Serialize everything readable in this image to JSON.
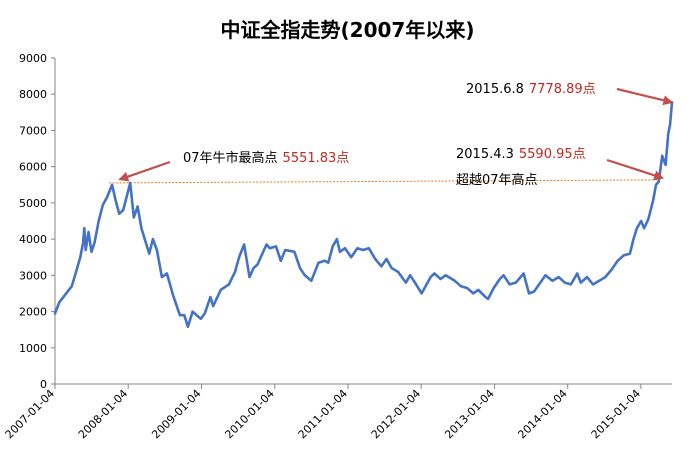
{
  "chart_data": {
    "type": "line",
    "title": "中证全指走势(2007年以来)",
    "xlabel": "",
    "ylabel": "",
    "ylim": [
      0,
      9000
    ],
    "yticks": [
      "0",
      "1000",
      "2000",
      "3000",
      "4000",
      "5000",
      "6000",
      "7000",
      "8000",
      "9000"
    ],
    "xticks": [
      "2007-01-04",
      "2008-01-04",
      "2009-01-04",
      "2010-01-04",
      "2011-01-04",
      "2012-01-04",
      "2013-01-04",
      "2014-01-04",
      "2015-01-04"
    ],
    "xlim": [
      "2007-01-04",
      "2015-06-08"
    ],
    "grid": false,
    "legend": "none",
    "series": [
      {
        "color": "#4472c4",
        "points": [
          [
            "2007-01-04",
            1950
          ],
          [
            "2007-01-25",
            2250
          ],
          [
            "2007-02-15",
            2400
          ],
          [
            "2007-03-08",
            2550
          ],
          [
            "2007-03-29",
            2700
          ],
          [
            "2007-04-19",
            3100
          ],
          [
            "2007-05-10",
            3500
          ],
          [
            "2007-05-24",
            3900
          ],
          [
            "2007-05-30",
            4300
          ],
          [
            "2007-06-06",
            3700
          ],
          [
            "2007-06-20",
            4200
          ],
          [
            "2007-07-05",
            3650
          ],
          [
            "2007-07-20",
            3900
          ],
          [
            "2007-08-10",
            4500
          ],
          [
            "2007-08-31",
            4950
          ],
          [
            "2007-09-20",
            5150
          ],
          [
            "2007-10-16",
            5500
          ],
          [
            "2007-11-01",
            5100
          ],
          [
            "2007-11-20",
            4700
          ],
          [
            "2007-12-10",
            4800
          ],
          [
            "2008-01-14",
            5550
          ],
          [
            "2008-02-01",
            4600
          ],
          [
            "2008-02-20",
            4900
          ],
          [
            "2008-03-10",
            4300
          ],
          [
            "2008-04-18",
            3600
          ],
          [
            "2008-05-06",
            4000
          ],
          [
            "2008-05-26",
            3700
          ],
          [
            "2008-06-20",
            2950
          ],
          [
            "2008-07-15",
            3050
          ],
          [
            "2008-08-15",
            2450
          ],
          [
            "2008-09-18",
            1900
          ],
          [
            "2008-10-10",
            1900
          ],
          [
            "2008-10-28",
            1580
          ],
          [
            "2008-11-20",
            2000
          ],
          [
            "2008-12-10",
            1900
          ],
          [
            "2008-12-31",
            1800
          ],
          [
            "2009-01-20",
            1950
          ],
          [
            "2009-02-17",
            2400
          ],
          [
            "2009-03-03",
            2150
          ],
          [
            "2009-04-10",
            2600
          ],
          [
            "2009-05-20",
            2750
          ],
          [
            "2009-06-20",
            3100
          ],
          [
            "2009-07-10",
            3500
          ],
          [
            "2009-08-04",
            3850
          ],
          [
            "2009-08-31",
            2950
          ],
          [
            "2009-09-20",
            3200
          ],
          [
            "2009-10-10",
            3300
          ],
          [
            "2009-11-24",
            3850
          ],
          [
            "2009-12-10",
            3750
          ],
          [
            "2010-01-10",
            3800
          ],
          [
            "2010-02-03",
            3400
          ],
          [
            "2010-02-25",
            3700
          ],
          [
            "2010-04-12",
            3650
          ],
          [
            "2010-05-10",
            3200
          ],
          [
            "2010-06-03",
            3000
          ],
          [
            "2010-07-05",
            2850
          ],
          [
            "2010-08-10",
            3350
          ],
          [
            "2010-09-10",
            3400
          ],
          [
            "2010-09-28",
            3350
          ],
          [
            "2010-10-20",
            3800
          ],
          [
            "2010-11-10",
            4000
          ],
          [
            "2010-11-25",
            3650
          ],
          [
            "2010-12-20",
            3750
          ],
          [
            "2011-01-20",
            3500
          ],
          [
            "2011-02-20",
            3750
          ],
          [
            "2011-03-20",
            3700
          ],
          [
            "2011-04-18",
            3750
          ],
          [
            "2011-05-20",
            3450
          ],
          [
            "2011-06-20",
            3250
          ],
          [
            "2011-07-15",
            3450
          ],
          [
            "2011-08-10",
            3200
          ],
          [
            "2011-09-10",
            3100
          ],
          [
            "2011-10-20",
            2800
          ],
          [
            "2011-11-10",
            3000
          ],
          [
            "2011-12-10",
            2750
          ],
          [
            "2012-01-06",
            2500
          ],
          [
            "2012-02-20",
            2950
          ],
          [
            "2012-03-10",
            3050
          ],
          [
            "2012-04-10",
            2900
          ],
          [
            "2012-05-05",
            3000
          ],
          [
            "2012-06-20",
            2850
          ],
          [
            "2012-07-20",
            2700
          ],
          [
            "2012-08-20",
            2650
          ],
          [
            "2012-09-20",
            2500
          ],
          [
            "2012-10-15",
            2600
          ],
          [
            "2012-11-20",
            2400
          ],
          [
            "2012-12-03",
            2350
          ],
          [
            "2012-12-31",
            2650
          ],
          [
            "2013-01-30",
            2900
          ],
          [
            "2013-02-18",
            3000
          ],
          [
            "2013-03-20",
            2750
          ],
          [
            "2013-04-20",
            2800
          ],
          [
            "2013-05-29",
            3050
          ],
          [
            "2013-06-25",
            2500
          ],
          [
            "2013-07-20",
            2550
          ],
          [
            "2013-08-20",
            2800
          ],
          [
            "2013-09-15",
            3000
          ],
          [
            "2013-10-20",
            2850
          ],
          [
            "2013-11-20",
            2950
          ],
          [
            "2013-12-20",
            2800
          ],
          [
            "2014-01-20",
            2750
          ],
          [
            "2014-02-20",
            3050
          ],
          [
            "2014-03-10",
            2800
          ],
          [
            "2014-04-10",
            2950
          ],
          [
            "2014-05-10",
            2750
          ],
          [
            "2014-06-10",
            2850
          ],
          [
            "2014-07-10",
            2950
          ],
          [
            "2014-08-10",
            3150
          ],
          [
            "2014-09-10",
            3400
          ],
          [
            "2014-10-10",
            3550
          ],
          [
            "2014-11-10",
            3600
          ],
          [
            "2014-11-28",
            4000
          ],
          [
            "2014-12-15",
            4300
          ],
          [
            "2015-01-05",
            4500
          ],
          [
            "2015-01-20",
            4300
          ],
          [
            "2015-02-10",
            4550
          ],
          [
            "2015-03-05",
            5050
          ],
          [
            "2015-03-20",
            5500
          ],
          [
            "2015-04-03",
            5590.95
          ],
          [
            "2015-04-20",
            6300
          ],
          [
            "2015-05-07",
            6050
          ],
          [
            "2015-05-20",
            6900
          ],
          [
            "2015-05-29",
            7150
          ],
          [
            "2015-06-08",
            7778.89
          ]
        ]
      }
    ],
    "reference_line": {
      "y": 5551.83,
      "color": "#e8781e",
      "dashed": true
    },
    "annotations": [
      {
        "label": "07年牛市最高点",
        "value": "5551.83点",
        "arrow_to": [
          "2007-11-25",
          5651.83
        ]
      },
      {
        "label": "2015.6.8",
        "value": "7778.89点",
        "arrow_to": [
          "2015-06-05",
          7778.89
        ]
      },
      {
        "label": "2015.4.3",
        "value": "5590.95点",
        "arrow_to": [
          "2015-04-20",
          5690.95
        ]
      },
      {
        "label": "超越07年高点",
        "value": "",
        "arrow_to": null
      }
    ]
  }
}
